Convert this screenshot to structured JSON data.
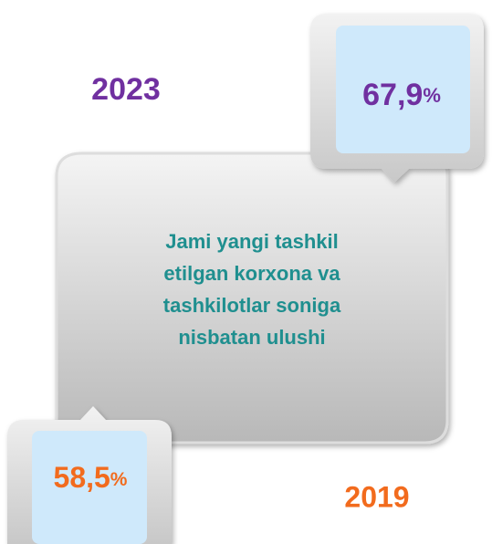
{
  "center_text": [
    "Jami yangi tashkil",
    "etilgan korxona va",
    "tashkilotlar soniga",
    "nisbatan ulushi"
  ],
  "items": [
    {
      "year": "2023",
      "value": "67,9",
      "unit": "%"
    },
    {
      "year": "2019",
      "value": "58,5",
      "unit": "%"
    }
  ]
}
